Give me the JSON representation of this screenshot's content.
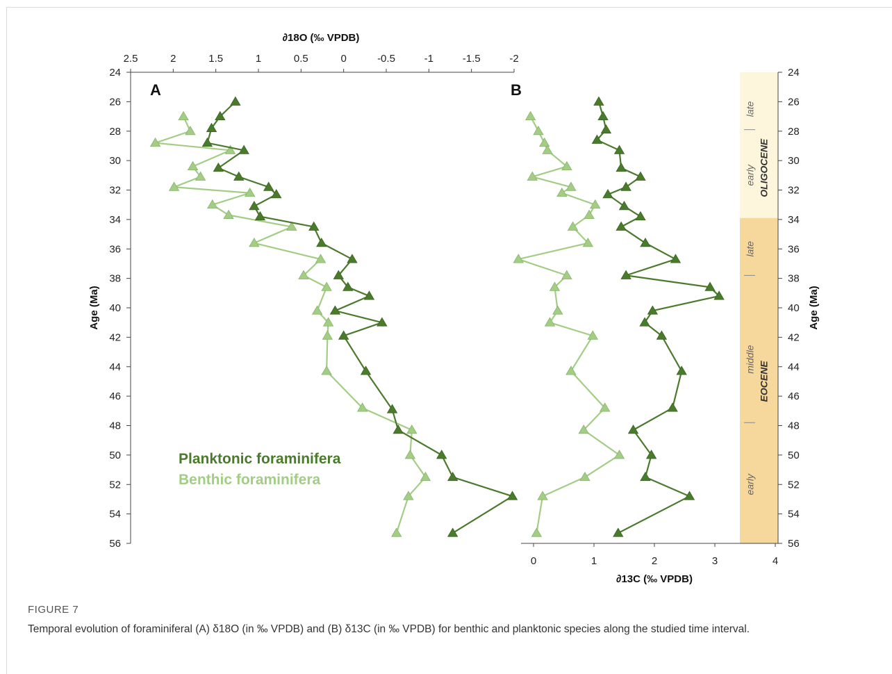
{
  "chart_data": [
    {
      "type": "line",
      "panel_label": "A",
      "xlabel": "∂18O (‰ VPDB)",
      "ylabel": "Age (Ma)",
      "xlim": [
        2.5,
        -2
      ],
      "x_reversed": true,
      "ylim": [
        56,
        24
      ],
      "x_ticks": [
        "2.5",
        "2",
        "1.5",
        "1",
        "0.5",
        "0",
        "-0.5",
        "-1",
        "-1.5",
        "-2"
      ],
      "y_ticks": [
        "24",
        "26",
        "28",
        "30",
        "32",
        "34",
        "36",
        "38",
        "40",
        "42",
        "44",
        "46",
        "48",
        "50",
        "52",
        "54",
        "56"
      ],
      "series": [
        {
          "name": "Planktonic foraminifera",
          "color": "#4a7a2c",
          "points": [
            [
              1.27,
              26
            ],
            [
              1.45,
              27
            ],
            [
              1.55,
              27.8
            ],
            [
              1.6,
              28.8
            ],
            [
              1.17,
              29.3
            ],
            [
              1.47,
              30.5
            ],
            [
              1.23,
              31.1
            ],
            [
              0.88,
              31.8
            ],
            [
              0.79,
              32.3
            ],
            [
              1.05,
              33.1
            ],
            [
              0.98,
              33.8
            ],
            [
              0.35,
              34.5
            ],
            [
              0.26,
              35.6
            ],
            [
              -0.1,
              36.7
            ],
            [
              0.06,
              37.8
            ],
            [
              -0.05,
              38.6
            ],
            [
              -0.3,
              39.2
            ],
            [
              0.1,
              40.2
            ],
            [
              -0.45,
              41
            ],
            [
              0.0,
              41.9
            ],
            [
              -0.26,
              44.3
            ],
            [
              -0.57,
              46.9
            ],
            [
              -0.64,
              48.3
            ],
            [
              -1.15,
              50
            ],
            [
              -1.28,
              51.5
            ],
            [
              -1.98,
              52.8
            ],
            [
              -1.28,
              55.3
            ]
          ]
        },
        {
          "name": "Benthic foraminifera",
          "color": "#a3cd85",
          "points": [
            [
              1.88,
              27
            ],
            [
              1.8,
              28
            ],
            [
              2.21,
              28.8
            ],
            [
              1.33,
              29.3
            ],
            [
              1.77,
              30.4
            ],
            [
              1.68,
              31.1
            ],
            [
              1.99,
              31.8
            ],
            [
              1.1,
              32.2
            ],
            [
              1.54,
              33
            ],
            [
              1.35,
              33.7
            ],
            [
              0.61,
              34.5
            ],
            [
              1.05,
              35.6
            ],
            [
              0.27,
              36.7
            ],
            [
              0.47,
              37.8
            ],
            [
              0.2,
              38.6
            ],
            [
              0.31,
              40.2
            ],
            [
              0.18,
              41
            ],
            [
              0.19,
              41.9
            ],
            [
              0.2,
              44.3
            ],
            [
              -0.22,
              46.8
            ],
            [
              -0.8,
              48.3
            ],
            [
              -0.78,
              50
            ],
            [
              -0.96,
              51.5
            ],
            [
              -0.76,
              52.8
            ],
            [
              -0.62,
              55.3
            ]
          ]
        }
      ]
    },
    {
      "type": "line",
      "panel_label": "B",
      "xlabel": "∂13C (‰ VPDB)",
      "ylabel": "Age (Ma)",
      "xlim": [
        -0.2,
        4
      ],
      "ylim": [
        56,
        24
      ],
      "x_ticks": [
        "0",
        "1",
        "2",
        "3",
        "4"
      ],
      "y_ticks": [
        "24",
        "26",
        "28",
        "30",
        "32",
        "34",
        "36",
        "38",
        "40",
        "42",
        "44",
        "46",
        "48",
        "50",
        "52",
        "54",
        "56"
      ],
      "series": [
        {
          "name": "Planktonic foraminifera",
          "color": "#4a7a2c",
          "points": [
            [
              1.08,
              26
            ],
            [
              1.15,
              27
            ],
            [
              1.2,
              27.9
            ],
            [
              1.05,
              28.6
            ],
            [
              1.42,
              29.3
            ],
            [
              1.45,
              30.5
            ],
            [
              1.77,
              31.1
            ],
            [
              1.53,
              31.8
            ],
            [
              1.23,
              32.3
            ],
            [
              1.5,
              33.1
            ],
            [
              1.77,
              33.8
            ],
            [
              1.45,
              34.5
            ],
            [
              1.85,
              35.6
            ],
            [
              2.35,
              36.7
            ],
            [
              1.53,
              37.8
            ],
            [
              2.92,
              38.6
            ],
            [
              3.07,
              39.2
            ],
            [
              1.97,
              40.2
            ],
            [
              1.84,
              41
            ],
            [
              2.12,
              41.9
            ],
            [
              2.45,
              44.3
            ],
            [
              2.3,
              46.8
            ],
            [
              1.65,
              48.3
            ],
            [
              1.95,
              50
            ],
            [
              1.85,
              51.5
            ],
            [
              2.58,
              52.8
            ],
            [
              1.4,
              55.3
            ]
          ]
        },
        {
          "name": "Benthic foraminifera",
          "color": "#a3cd85",
          "points": [
            [
              -0.05,
              27
            ],
            [
              0.08,
              28
            ],
            [
              0.18,
              28.8
            ],
            [
              0.23,
              29.3
            ],
            [
              0.55,
              30.4
            ],
            [
              -0.02,
              31.1
            ],
            [
              0.62,
              31.8
            ],
            [
              0.47,
              32.2
            ],
            [
              1.02,
              33
            ],
            [
              0.92,
              33.7
            ],
            [
              0.65,
              34.5
            ],
            [
              0.9,
              35.6
            ],
            [
              -0.25,
              36.7
            ],
            [
              0.55,
              37.8
            ],
            [
              0.35,
              38.6
            ],
            [
              0.4,
              40.2
            ],
            [
              0.27,
              41
            ],
            [
              0.98,
              41.9
            ],
            [
              0.62,
              44.3
            ],
            [
              1.18,
              46.8
            ],
            [
              0.83,
              48.3
            ],
            [
              1.42,
              50
            ],
            [
              0.85,
              51.5
            ],
            [
              0.15,
              52.8
            ],
            [
              0.05,
              55.3
            ]
          ]
        }
      ]
    }
  ],
  "stratigraphy": {
    "oligocene_label": "OLIGOCENE",
    "eocene_label": "EOCENE",
    "oligocene_color": "#fdf6dc",
    "eocene_color": "#f6d79c",
    "substages": [
      {
        "label": "late",
        "age": 26.5
      },
      {
        "label": "early",
        "age": 31
      },
      {
        "label": "late",
        "age": 36
      },
      {
        "label": "middle",
        "age": 43.5
      },
      {
        "label": "early",
        "age": 52
      }
    ],
    "boundaries": [
      33.9,
      37.8,
      47.8
    ],
    "minor_boundaries": [
      27.9
    ]
  },
  "legend": {
    "planktonic": "Planktonic foraminifera",
    "benthic": "Benthic foraminifera"
  },
  "caption": {
    "label": "FIGURE 7",
    "text": "Temporal evolution of foraminiferal (A) δ18O (in ‰ VPDB) and (B) δ13C (in ‰ VPDB) for benthic and planktonic species along the studied time interval."
  }
}
